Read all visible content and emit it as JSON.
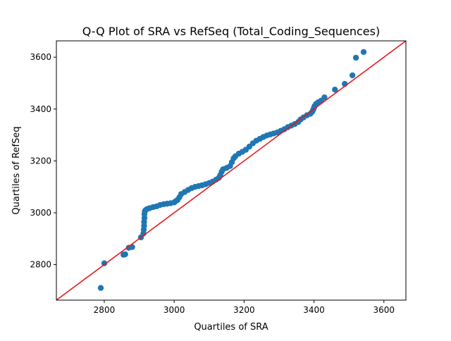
{
  "chart_data": {
    "type": "scatter",
    "title": "Q-Q Plot of SRA vs RefSeq (Total_Coding_Sequences)",
    "xlabel": "Quartiles of SRA",
    "ylabel": "Quartiles of RefSeq",
    "xlim": [
      2663,
      3663
    ],
    "ylim": [
      2663,
      3663
    ],
    "x_ticks": [
      2800,
      3000,
      3200,
      3400,
      3600
    ],
    "y_ticks": [
      2800,
      3000,
      3200,
      3400,
      3600
    ],
    "grid": false,
    "reference_line": {
      "label": "",
      "color": "#e41a1c",
      "from": [
        2663,
        2663
      ],
      "to": [
        3663,
        3663
      ]
    },
    "point_color": "#1f77b4",
    "points": [
      [
        2790,
        2710
      ],
      [
        2800,
        2805
      ],
      [
        2855,
        2838
      ],
      [
        2860,
        2840
      ],
      [
        2870,
        2865
      ],
      [
        2880,
        2868
      ],
      [
        2905,
        2905
      ],
      [
        2912,
        2920
      ],
      [
        2913,
        2935
      ],
      [
        2914,
        2950
      ],
      [
        2914,
        2965
      ],
      [
        2915,
        2980
      ],
      [
        2915,
        2995
      ],
      [
        2916,
        3005
      ],
      [
        2918,
        3010
      ],
      [
        2922,
        3014
      ],
      [
        2930,
        3018
      ],
      [
        2940,
        3022
      ],
      [
        2950,
        3025
      ],
      [
        2960,
        3030
      ],
      [
        2970,
        3033
      ],
      [
        2980,
        3035
      ],
      [
        2990,
        3037
      ],
      [
        3000,
        3040
      ],
      [
        3005,
        3045
      ],
      [
        3010,
        3050
      ],
      [
        3015,
        3060
      ],
      [
        3020,
        3072
      ],
      [
        3030,
        3080
      ],
      [
        3040,
        3088
      ],
      [
        3050,
        3095
      ],
      [
        3060,
        3100
      ],
      [
        3070,
        3103
      ],
      [
        3080,
        3106
      ],
      [
        3090,
        3110
      ],
      [
        3100,
        3115
      ],
      [
        3110,
        3120
      ],
      [
        3120,
        3128
      ],
      [
        3128,
        3135
      ],
      [
        3132,
        3145
      ],
      [
        3136,
        3158
      ],
      [
        3140,
        3168
      ],
      [
        3150,
        3173
      ],
      [
        3160,
        3180
      ],
      [
        3165,
        3195
      ],
      [
        3170,
        3210
      ],
      [
        3175,
        3218
      ],
      [
        3185,
        3228
      ],
      [
        3195,
        3235
      ],
      [
        3205,
        3243
      ],
      [
        3215,
        3255
      ],
      [
        3225,
        3268
      ],
      [
        3235,
        3278
      ],
      [
        3245,
        3285
      ],
      [
        3255,
        3292
      ],
      [
        3265,
        3298
      ],
      [
        3275,
        3302
      ],
      [
        3285,
        3306
      ],
      [
        3295,
        3310
      ],
      [
        3305,
        3316
      ],
      [
        3315,
        3322
      ],
      [
        3325,
        3330
      ],
      [
        3335,
        3336
      ],
      [
        3345,
        3342
      ],
      [
        3355,
        3350
      ],
      [
        3362,
        3360
      ],
      [
        3370,
        3368
      ],
      [
        3380,
        3376
      ],
      [
        3390,
        3382
      ],
      [
        3395,
        3390
      ],
      [
        3398,
        3398
      ],
      [
        3400,
        3405
      ],
      [
        3402,
        3412
      ],
      [
        3406,
        3420
      ],
      [
        3412,
        3426
      ],
      [
        3420,
        3432
      ],
      [
        3430,
        3445
      ],
      [
        3460,
        3475
      ],
      [
        3488,
        3497
      ],
      [
        3510,
        3530
      ],
      [
        3520,
        3598
      ],
      [
        3542,
        3620
      ]
    ]
  }
}
